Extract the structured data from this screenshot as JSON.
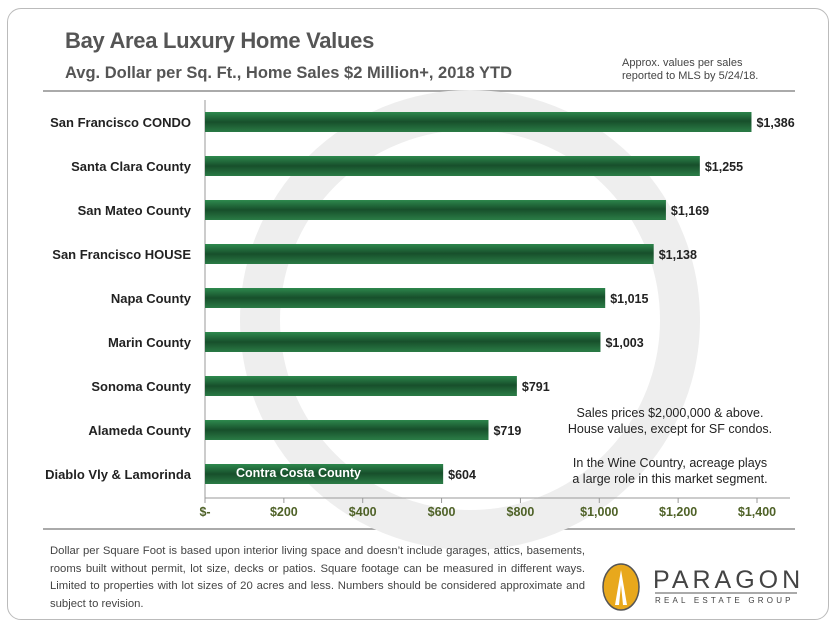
{
  "header": {
    "title": "Bay Area Luxury Home Values",
    "subtitle": "Avg. Dollar per Sq. Ft., Home Sales $2 Million+, 2018 YTD",
    "note_line1": "Approx. values per sales",
    "note_line2": "reported to MLS by 5/24/18."
  },
  "chart_data": {
    "type": "bar",
    "orientation": "horizontal",
    "title": "Bay Area Luxury Home Values",
    "subtitle": "Avg. Dollar per Sq. Ft., Home Sales $2 Million+, 2018 YTD",
    "categories": [
      "San Francisco CONDO",
      "Santa Clara County",
      "San Mateo County",
      "San Francisco HOUSE",
      "Napa County",
      "Marin County",
      "Sonoma County",
      "Alameda County",
      "Diablo Vly & Lamorinda"
    ],
    "values": [
      1386,
      1255,
      1169,
      1138,
      1015,
      1003,
      791,
      719,
      604
    ],
    "data_labels": [
      "$1,386",
      "$1,255",
      "$1,169",
      "$1,138",
      "$1,015",
      "$1,003",
      "$791",
      "$719",
      "$604"
    ],
    "bar_inner_label": "Contra Costa County",
    "xlim": [
      0,
      1400
    ],
    "x_ticks": [
      0,
      200,
      400,
      600,
      800,
      1000,
      1200,
      1400
    ],
    "x_tick_labels": [
      "$-",
      "$200",
      "$400",
      "$600",
      "$800",
      "$1,000",
      "$1,200",
      "$1,400"
    ],
    "grid": false,
    "bar_color": "#1f6b3a",
    "tick_label_color": "#4f6228"
  },
  "annotations": {
    "a1": "Sales prices $2,000,000 & above.",
    "a2": "House values, except for SF condos.",
    "b1": "In the Wine Country, acreage plays",
    "b2": "a large role in this market segment."
  },
  "footer": {
    "text": "Dollar per Square Foot is based upon interior living space and doesn’t include garages, attics, basements, rooms built without permit, lot size, decks or patios. Square footage can be measured in different ways. Limited to properties with lot sizes of 20 acres and less. Numbers should be considered approximate and subject to revision.",
    "logo": "PARAGON",
    "logo_sub": "REAL ESTATE GROUP"
  }
}
